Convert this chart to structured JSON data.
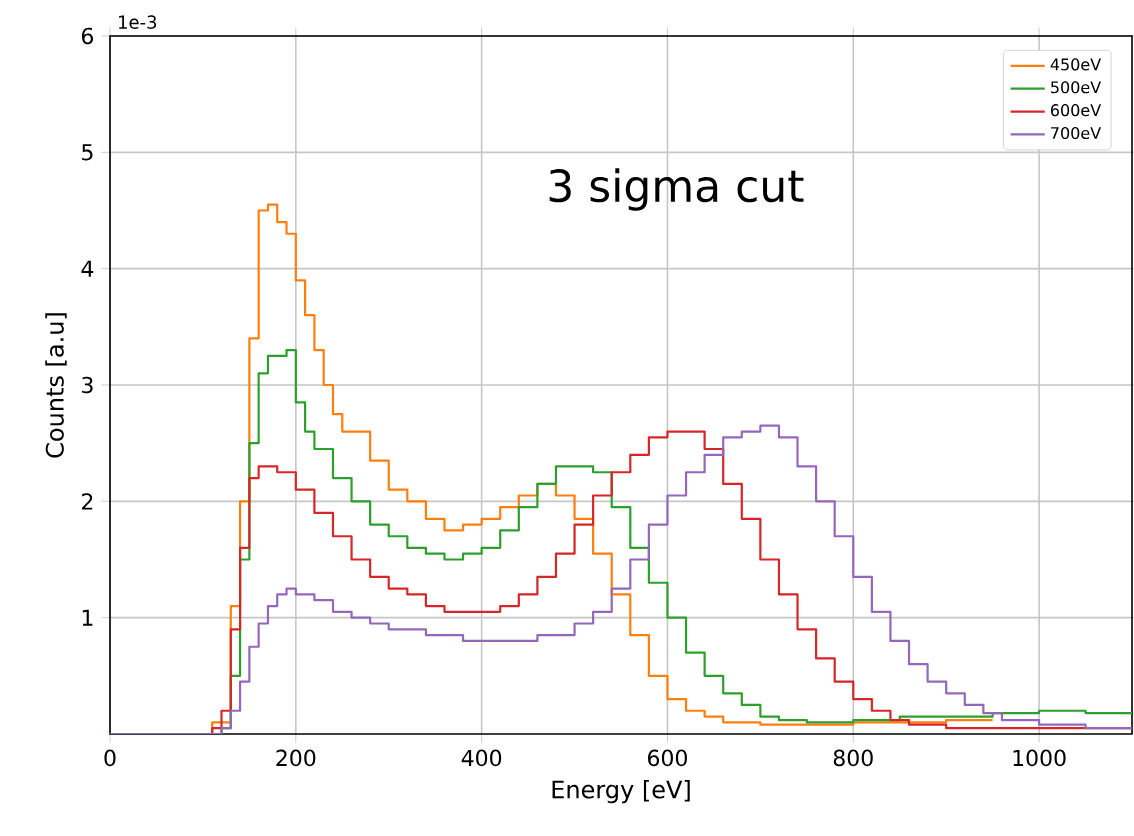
{
  "chart_data": {
    "type": "step",
    "xlabel": "Energy [eV]",
    "ylabel": "Counts [a.u]",
    "annotations": [
      "3 sigma cut",
      "1e-3"
    ],
    "xlim": [
      0,
      1100
    ],
    "xticks": [
      0,
      200,
      400,
      600,
      800,
      1000
    ],
    "ylim": [
      0,
      6
    ],
    "yticks": [
      1,
      2,
      3,
      4,
      5,
      6
    ],
    "grid": true,
    "legend": "top right",
    "series": [
      {
        "name": "450eV",
        "color": "#ff7f0e",
        "x": [
          0,
          110,
          120,
          130,
          140,
          150,
          160,
          170,
          180,
          190,
          200,
          210,
          220,
          230,
          240,
          250,
          260,
          280,
          300,
          320,
          340,
          360,
          380,
          400,
          420,
          440,
          460,
          480,
          500,
          520,
          540,
          560,
          580,
          600,
          620,
          640,
          660,
          700,
          800,
          900,
          950
        ],
        "values": [
          0,
          0.1,
          0.1,
          1.1,
          2.0,
          3.4,
          4.5,
          4.55,
          4.4,
          4.3,
          3.9,
          3.6,
          3.3,
          3.0,
          2.75,
          2.6,
          2.6,
          2.35,
          2.1,
          2.0,
          1.85,
          1.75,
          1.8,
          1.85,
          1.95,
          2.05,
          2.15,
          2.05,
          1.85,
          1.55,
          1.2,
          0.85,
          0.5,
          0.3,
          0.2,
          0.15,
          0.1,
          0.08,
          0.1,
          0.12,
          0.12
        ]
      },
      {
        "name": "500eV",
        "color": "#2ca02c",
        "x": [
          0,
          120,
          130,
          140,
          150,
          160,
          170,
          190,
          200,
          210,
          220,
          240,
          260,
          280,
          300,
          320,
          340,
          360,
          380,
          400,
          420,
          440,
          460,
          480,
          500,
          520,
          540,
          560,
          580,
          600,
          620,
          640,
          660,
          680,
          700,
          720,
          750,
          800,
          850,
          900,
          950,
          1000,
          1050,
          1100
        ],
        "values": [
          0,
          0.05,
          0.5,
          1.5,
          2.5,
          3.1,
          3.25,
          3.3,
          2.85,
          2.6,
          2.45,
          2.2,
          2.0,
          1.8,
          1.7,
          1.6,
          1.55,
          1.5,
          1.55,
          1.6,
          1.75,
          1.95,
          2.15,
          2.3,
          2.3,
          2.25,
          1.95,
          1.6,
          1.3,
          1.0,
          0.7,
          0.5,
          0.35,
          0.25,
          0.15,
          0.12,
          0.1,
          0.12,
          0.15,
          0.15,
          0.18,
          0.2,
          0.18,
          0.18
        ]
      },
      {
        "name": "600eV",
        "color": "#d62728",
        "x": [
          0,
          110,
          120,
          130,
          140,
          150,
          160,
          180,
          200,
          220,
          240,
          260,
          280,
          300,
          320,
          340,
          360,
          380,
          400,
          420,
          440,
          460,
          480,
          500,
          520,
          540,
          560,
          580,
          600,
          620,
          640,
          660,
          680,
          700,
          720,
          740,
          760,
          780,
          800,
          820,
          840,
          860,
          900,
          1000,
          1100
        ],
        "values": [
          0,
          0.05,
          0.2,
          0.9,
          1.6,
          2.2,
          2.3,
          2.25,
          2.1,
          1.9,
          1.7,
          1.5,
          1.35,
          1.25,
          1.2,
          1.1,
          1.05,
          1.05,
          1.05,
          1.1,
          1.2,
          1.35,
          1.55,
          1.8,
          2.05,
          2.25,
          2.4,
          2.55,
          2.6,
          2.6,
          2.45,
          2.15,
          1.85,
          1.5,
          1.2,
          0.9,
          0.65,
          0.45,
          0.3,
          0.2,
          0.12,
          0.08,
          0.05,
          0.05,
          0.05
        ]
      },
      {
        "name": "700eV",
        "color": "#9467bd",
        "x": [
          0,
          120,
          130,
          140,
          150,
          160,
          170,
          180,
          190,
          200,
          220,
          240,
          260,
          280,
          300,
          340,
          380,
          420,
          460,
          500,
          520,
          540,
          560,
          580,
          600,
          620,
          640,
          660,
          680,
          700,
          720,
          740,
          760,
          780,
          800,
          820,
          840,
          860,
          880,
          900,
          920,
          940,
          960,
          1000,
          1050,
          1100
        ],
        "values": [
          0,
          0.05,
          0.2,
          0.45,
          0.75,
          0.95,
          1.1,
          1.2,
          1.25,
          1.2,
          1.15,
          1.05,
          1.0,
          0.95,
          0.9,
          0.85,
          0.8,
          0.8,
          0.85,
          0.95,
          1.05,
          1.25,
          1.5,
          1.8,
          2.05,
          2.25,
          2.4,
          2.55,
          2.6,
          2.65,
          2.55,
          2.3,
          2.0,
          1.7,
          1.35,
          1.05,
          0.8,
          0.6,
          0.45,
          0.35,
          0.25,
          0.18,
          0.12,
          0.08,
          0.05,
          0.05
        ]
      }
    ]
  }
}
